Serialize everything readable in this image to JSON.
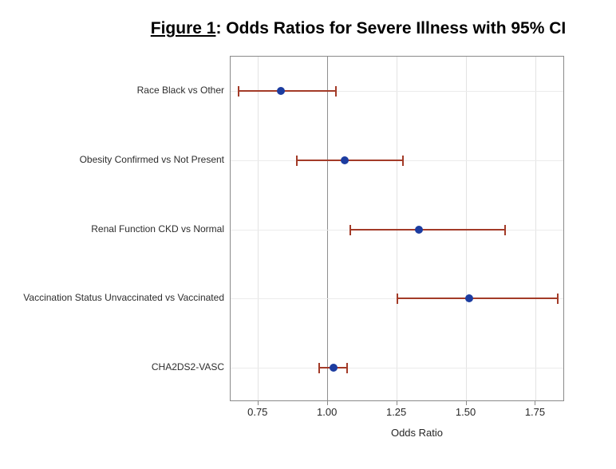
{
  "figure": {
    "title_prefix": "Figure 1",
    "title_rest": ": Odds Ratios for Severe Illness with 95% CI"
  },
  "chart_data": {
    "type": "scatter",
    "subtype": "forest-plot",
    "title": "Figure 1: Odds Ratios for Severe Illness with 95% CI",
    "xlabel": "Odds Ratio",
    "ylabel": "",
    "grid": true,
    "legend": "none",
    "xlim": [
      0.65,
      1.855
    ],
    "xticks": [
      0.75,
      1.0,
      1.25,
      1.5,
      1.75
    ],
    "reference_line": 1.0,
    "categories": [
      "Race Black vs Other",
      "Obesity Confirmed vs Not Present",
      "Renal Function CKD vs Normal",
      "Vaccination Status Unvaccinated vs Vaccinated",
      "CHA2DS2-VASC"
    ],
    "points": [
      {
        "label": "Race Black vs Other",
        "odds_ratio": 0.83,
        "ci_low": 0.68,
        "ci_high": 1.03
      },
      {
        "label": "Obesity Confirmed vs Not Present",
        "odds_ratio": 1.06,
        "ci_low": 0.89,
        "ci_high": 1.27
      },
      {
        "label": "Renal Function CKD vs Normal",
        "odds_ratio": 1.33,
        "ci_low": 1.08,
        "ci_high": 1.64
      },
      {
        "label": "Vaccination Status Unvaccinated vs Vaccinated",
        "odds_ratio": 1.51,
        "ci_low": 1.25,
        "ci_high": 1.83
      },
      {
        "label": "CHA2DS2-VASC",
        "odds_ratio": 1.02,
        "ci_low": 0.97,
        "ci_high": 1.07
      }
    ],
    "colors": {
      "marker": "#1c3ca0",
      "error_bar": "#a33b28",
      "frame": "#8a8a8a",
      "reference_line": "#8f8f8f",
      "gridline": "#e3e3e3",
      "background": "#ffffff"
    }
  }
}
